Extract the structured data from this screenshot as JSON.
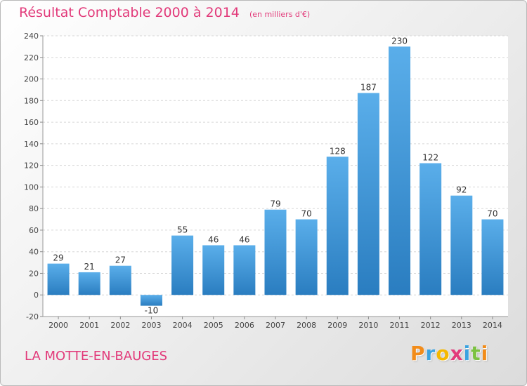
{
  "header": {
    "title": "Résultat Comptable 2000 à 2014",
    "unit": "(en milliers d'€)"
  },
  "footer": {
    "place": "LA MOTTE-EN-BAUGES",
    "brand": "Proxiti",
    "brand_letters": [
      {
        "ch": "P",
        "color": "#f28c1a"
      },
      {
        "ch": "r",
        "color": "#3ba3e0"
      },
      {
        "ch": "o",
        "color": "#f5b800"
      },
      {
        "ch": "x",
        "color": "#e23a7a"
      },
      {
        "ch": "i",
        "color": "#3ba3e0"
      },
      {
        "ch": "t",
        "color": "#7cc242"
      },
      {
        "ch": "i",
        "color": "#f28c1a"
      }
    ]
  },
  "colors": {
    "accent": "#e23a7a",
    "bar_top": "#5aaeea",
    "bar_bottom": "#2a7dc0"
  },
  "chart_data": {
    "type": "bar",
    "title": "Résultat Comptable 2000 à 2014",
    "subtitle": "(en milliers d'€)",
    "categories": [
      "2000",
      "2001",
      "2002",
      "2003",
      "2004",
      "2005",
      "2006",
      "2007",
      "2008",
      "2009",
      "2010",
      "2011",
      "2012",
      "2013",
      "2014"
    ],
    "values": [
      29,
      21,
      27,
      -10,
      55,
      46,
      46,
      79,
      70,
      128,
      187,
      230,
      122,
      92,
      70
    ],
    "ylim": [
      -20,
      240
    ],
    "yticks": [
      -20,
      0,
      20,
      40,
      60,
      80,
      100,
      120,
      140,
      160,
      180,
      200,
      220,
      240
    ],
    "grid": true
  }
}
